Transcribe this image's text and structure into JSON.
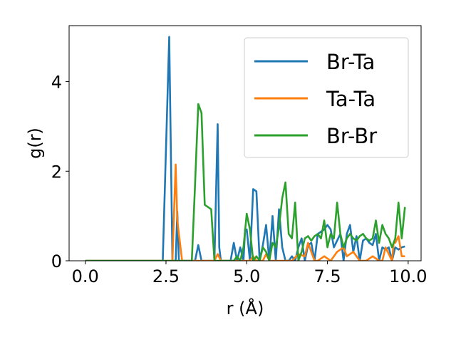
{
  "chart_data": {
    "type": "line",
    "xlabel": "r (Å)",
    "ylabel": "g(r)",
    "xlim": [
      -0.5,
      10.4
    ],
    "ylim": [
      0,
      5.25
    ],
    "xticks": [
      0.0,
      2.5,
      5.0,
      7.5,
      10.0
    ],
    "xtick_labels": [
      "0.0",
      "2.5",
      "5.0",
      "7.5",
      "10.0"
    ],
    "yticks": [
      0,
      2,
      4
    ],
    "ytick_labels": [
      "0",
      "2",
      "4"
    ],
    "grid": false,
    "legend_position": "top-right",
    "series": [
      {
        "name": "Br-Ta",
        "color": "#1f77b4",
        "x": [
          0.0,
          2.4,
          2.5,
          2.6,
          2.7,
          2.8,
          2.85,
          2.9,
          3.0,
          3.4,
          3.5,
          3.6,
          4.0,
          4.05,
          4.1,
          4.15,
          4.2,
          4.5,
          4.6,
          4.7,
          4.8,
          4.9,
          4.95,
          5.0,
          5.1,
          5.2,
          5.3,
          5.4,
          5.5,
          5.6,
          5.7,
          5.8,
          5.9,
          6.0,
          6.1,
          6.2,
          6.3,
          6.4,
          6.5,
          6.6,
          6.7,
          6.8,
          6.9,
          7.0,
          7.1,
          7.2,
          7.3,
          7.4,
          7.5,
          7.6,
          7.7,
          7.8,
          7.9,
          8.0,
          8.1,
          8.2,
          8.3,
          8.4,
          8.5,
          8.6,
          8.7,
          8.8,
          8.9,
          9.0,
          9.1,
          9.2,
          9.3,
          9.4,
          9.5,
          9.6,
          9.7,
          9.8,
          9.9
        ],
        "y": [
          0.0,
          0.0,
          2.5,
          5.0,
          0.0,
          0.0,
          1.1,
          0.0,
          0.0,
          0.0,
          0.35,
          0.0,
          0.0,
          1.5,
          3.05,
          0.3,
          0.0,
          0.0,
          0.4,
          0.0,
          0.3,
          0.0,
          0.7,
          0.7,
          0.0,
          1.6,
          1.55,
          0.0,
          0.35,
          0.8,
          0.0,
          1.0,
          0.0,
          1.15,
          0.3,
          0.0,
          0.0,
          0.1,
          0.0,
          0.3,
          0.5,
          0.0,
          0.35,
          0.4,
          0.0,
          0.6,
          0.65,
          0.7,
          0.8,
          0.7,
          0.3,
          0.45,
          0.6,
          0.0,
          0.6,
          0.8,
          0.2,
          0.55,
          0.0,
          0.45,
          0.5,
          0.4,
          0.35,
          0.6,
          0.0,
          0.3,
          0.25,
          0.3,
          0.0,
          0.3,
          0.25,
          0.3,
          0.32
        ]
      },
      {
        "name": "Ta-Ta",
        "color": "#ff7f0e",
        "x": [
          0.0,
          2.7,
          2.75,
          2.8,
          2.85,
          3.0,
          3.1,
          4.0,
          4.1,
          4.2,
          4.3,
          5.0,
          5.1,
          5.2,
          5.3,
          5.5,
          5.6,
          5.7,
          6.0,
          6.2,
          6.4,
          6.6,
          6.8,
          6.9,
          7.0,
          7.1,
          7.2,
          7.4,
          7.6,
          7.8,
          8.0,
          8.1,
          8.3,
          8.5,
          8.7,
          8.9,
          9.1,
          9.2,
          9.3,
          9.5,
          9.55,
          9.6,
          9.7,
          9.8,
          9.9
        ],
        "y": [
          0.0,
          0.0,
          1.1,
          2.15,
          0.9,
          0.0,
          0.0,
          0.0,
          0.15,
          0.0,
          0.0,
          0.0,
          0.0,
          0.1,
          0.0,
          0.0,
          0.15,
          0.0,
          0.0,
          0.0,
          0.0,
          0.15,
          0.1,
          0.4,
          0.2,
          0.0,
          0.0,
          0.1,
          0.0,
          0.2,
          0.3,
          0.1,
          0.2,
          0.0,
          0.0,
          0.1,
          0.0,
          0.0,
          0.3,
          0.0,
          0.4,
          0.4,
          0.55,
          0.1,
          0.1
        ]
      },
      {
        "name": "Br-Br",
        "color": "#2ca02c",
        "x": [
          0.0,
          3.2,
          3.3,
          3.4,
          3.5,
          3.6,
          3.7,
          3.8,
          3.9,
          4.0,
          4.1,
          4.6,
          4.7,
          4.8,
          4.9,
          5.0,
          5.1,
          5.2,
          5.3,
          5.4,
          5.5,
          5.6,
          5.7,
          5.8,
          5.9,
          6.0,
          6.1,
          6.2,
          6.3,
          6.4,
          6.5,
          6.6,
          6.7,
          6.8,
          6.9,
          7.0,
          7.1,
          7.2,
          7.3,
          7.4,
          7.5,
          7.6,
          7.7,
          7.8,
          7.9,
          8.0,
          8.1,
          8.2,
          8.3,
          8.4,
          8.5,
          8.6,
          8.7,
          8.8,
          8.9,
          9.0,
          9.1,
          9.2,
          9.3,
          9.4,
          9.5,
          9.6,
          9.7,
          9.8,
          9.9
        ],
        "y": [
          0.0,
          0.0,
          0.0,
          1.7,
          3.5,
          3.3,
          1.25,
          1.2,
          1.15,
          0.0,
          0.0,
          0.0,
          0.1,
          0.0,
          0.3,
          1.05,
          0.7,
          0.0,
          0.1,
          0.0,
          0.3,
          0.2,
          0.0,
          0.4,
          0.3,
          0.75,
          1.4,
          1.75,
          0.6,
          0.5,
          1.3,
          0.0,
          0.2,
          0.5,
          0.55,
          0.45,
          0.55,
          0.6,
          0.5,
          0.9,
          0.3,
          0.6,
          0.5,
          1.3,
          0.6,
          0.3,
          0.5,
          0.6,
          0.5,
          0.45,
          0.55,
          0.6,
          0.5,
          0.45,
          0.5,
          0.9,
          0.4,
          0.8,
          0.6,
          0.5,
          0.3,
          0.5,
          1.3,
          0.5,
          1.2
        ]
      }
    ]
  }
}
